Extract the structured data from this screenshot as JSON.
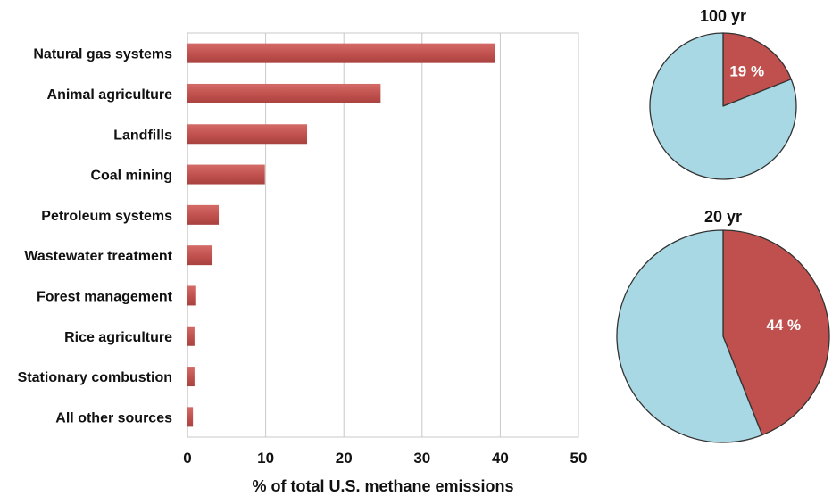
{
  "chart_data": [
    {
      "type": "bar",
      "orientation": "horizontal",
      "categories": [
        "Natural gas systems",
        "Animal agriculture",
        "Landfills",
        "Coal mining",
        "Petroleum systems",
        "Wastewater treatment",
        "Forest management",
        "Rice agriculture",
        "Stationary combustion",
        "All other sources"
      ],
      "values": [
        39.3,
        24.7,
        15.3,
        9.9,
        4.0,
        3.2,
        1.0,
        0.9,
        0.9,
        0.7
      ],
      "xlabel": "% of total U.S. methane emissions",
      "xlim": [
        0,
        50
      ],
      "xticks": [
        "0",
        "10",
        "20",
        "30",
        "40",
        "50"
      ],
      "grid": "vertical",
      "bar_color": "#c0504d"
    },
    {
      "type": "pie",
      "title": "100 yr",
      "slices": [
        {
          "label": "19 %",
          "value": 19,
          "color": "#c0504d"
        },
        {
          "label": "",
          "value": 81,
          "color": "#a8d8e4"
        }
      ]
    },
    {
      "type": "pie",
      "title": "20 yr",
      "slices": [
        {
          "label": "44 %",
          "value": 44,
          "color": "#c0504d"
        },
        {
          "label": "",
          "value": 56,
          "color": "#a8d8e4"
        }
      ]
    }
  ]
}
